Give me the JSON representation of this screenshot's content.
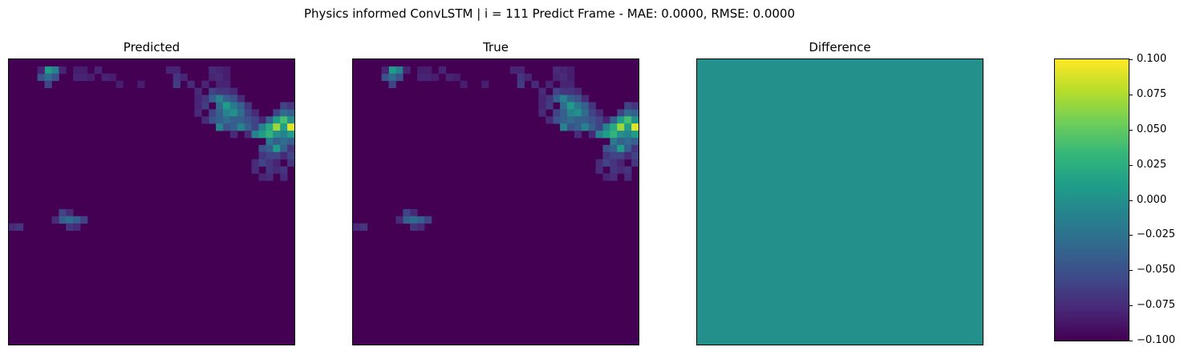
{
  "figure": {
    "suptitle": "Physics informed ConvLSTM | i = 111 Predict Frame - MAE: 0.0000, RMSE: 0.0000"
  },
  "panels": [
    {
      "title": "Predicted"
    },
    {
      "title": "True"
    },
    {
      "title": "Difference"
    }
  ],
  "chart_data": {
    "type": "heatmap",
    "grid_size": 40,
    "colormap": "viridis",
    "cells": [
      [
        1,
        5,
        0.55
      ],
      [
        1,
        6,
        0.45
      ],
      [
        2,
        4,
        0.25
      ],
      [
        2,
        5,
        0.35
      ],
      [
        2,
        6,
        0.25
      ],
      [
        3,
        5,
        0.2
      ],
      [
        1,
        4,
        0.1
      ],
      [
        1,
        7,
        0.1
      ],
      [
        1,
        9,
        0.08
      ],
      [
        1,
        10,
        0.08
      ],
      [
        2,
        9,
        0.1
      ],
      [
        2,
        10,
        0.1
      ],
      [
        2,
        11,
        0.08
      ],
      [
        1,
        12,
        0.1
      ],
      [
        2,
        13,
        0.1
      ],
      [
        2,
        14,
        0.08
      ],
      [
        3,
        15,
        0.08
      ],
      [
        3,
        18,
        0.08
      ],
      [
        1,
        22,
        0.1
      ],
      [
        1,
        23,
        0.1
      ],
      [
        2,
        23,
        0.15
      ],
      [
        3,
        23,
        0.18
      ],
      [
        2,
        24,
        0.1
      ],
      [
        3,
        25,
        0.12
      ],
      [
        1,
        28,
        0.12
      ],
      [
        2,
        28,
        0.1
      ],
      [
        1,
        29,
        0.1
      ],
      [
        2,
        29,
        0.12
      ],
      [
        3,
        29,
        0.1
      ],
      [
        3,
        27,
        0.1
      ],
      [
        1,
        30,
        0.08
      ],
      [
        2,
        30,
        0.08
      ],
      [
        3,
        30,
        0.1
      ],
      [
        4,
        28,
        0.2
      ],
      [
        4,
        29,
        0.15
      ],
      [
        4,
        30,
        0.15
      ],
      [
        4,
        31,
        0.12
      ],
      [
        5,
        28,
        0.3
      ],
      [
        5,
        29,
        0.45
      ],
      [
        5,
        30,
        0.3
      ],
      [
        5,
        31,
        0.25
      ],
      [
        5,
        32,
        0.12
      ],
      [
        6,
        29,
        0.35
      ],
      [
        6,
        30,
        0.55
      ],
      [
        6,
        31,
        0.4
      ],
      [
        6,
        32,
        0.3
      ],
      [
        6,
        33,
        0.15
      ],
      [
        6,
        27,
        0.18
      ],
      [
        7,
        28,
        0.2
      ],
      [
        7,
        29,
        0.3
      ],
      [
        7,
        30,
        0.45
      ],
      [
        7,
        31,
        0.5
      ],
      [
        7,
        32,
        0.35
      ],
      [
        7,
        33,
        0.2
      ],
      [
        7,
        34,
        0.12
      ],
      [
        7,
        26,
        0.12
      ],
      [
        8,
        28,
        0.25
      ],
      [
        8,
        29,
        0.3
      ],
      [
        8,
        30,
        0.35
      ],
      [
        8,
        31,
        0.3
      ],
      [
        8,
        32,
        0.3
      ],
      [
        8,
        33,
        0.25
      ],
      [
        8,
        34,
        0.2
      ],
      [
        8,
        35,
        0.1
      ],
      [
        8,
        27,
        0.12
      ],
      [
        7,
        37,
        0.2
      ],
      [
        7,
        38,
        0.35
      ],
      [
        7,
        39,
        0.3
      ],
      [
        6,
        38,
        0.2
      ],
      [
        6,
        39,
        0.15
      ],
      [
        8,
        36,
        0.3
      ],
      [
        8,
        37,
        0.55
      ],
      [
        8,
        38,
        0.7
      ],
      [
        8,
        39,
        0.5
      ],
      [
        9,
        29,
        0.45
      ],
      [
        9,
        30,
        0.25
      ],
      [
        9,
        31,
        0.3
      ],
      [
        9,
        32,
        0.45
      ],
      [
        9,
        33,
        0.3
      ],
      [
        9,
        34,
        0.2
      ],
      [
        9,
        35,
        0.45
      ],
      [
        9,
        36,
        0.6
      ],
      [
        9,
        37,
        0.85
      ],
      [
        9,
        38,
        0.55
      ],
      [
        9,
        39,
        0.95
      ],
      [
        10,
        31,
        0.12
      ],
      [
        10,
        33,
        0.12
      ],
      [
        10,
        34,
        0.45
      ],
      [
        10,
        35,
        0.55
      ],
      [
        10,
        36,
        0.65
      ],
      [
        10,
        37,
        0.5
      ],
      [
        10,
        38,
        0.45
      ],
      [
        10,
        39,
        0.55
      ],
      [
        11,
        36,
        0.4
      ],
      [
        11,
        37,
        0.3
      ],
      [
        11,
        38,
        0.35
      ],
      [
        11,
        39,
        0.3
      ],
      [
        12,
        35,
        0.25
      ],
      [
        12,
        36,
        0.3
      ],
      [
        12,
        37,
        0.55
      ],
      [
        12,
        38,
        0.3
      ],
      [
        12,
        39,
        0.15
      ],
      [
        13,
        35,
        0.15
      ],
      [
        13,
        36,
        0.2
      ],
      [
        13,
        37,
        0.2
      ],
      [
        13,
        38,
        0.12
      ],
      [
        13,
        39,
        0.2
      ],
      [
        14,
        34,
        0.12
      ],
      [
        14,
        35,
        0.2
      ],
      [
        14,
        36,
        0.15
      ],
      [
        14,
        37,
        0.1
      ],
      [
        14,
        39,
        0.15
      ],
      [
        15,
        34,
        0.12
      ],
      [
        15,
        36,
        0.15
      ],
      [
        15,
        37,
        0.12
      ],
      [
        15,
        38,
        0.15
      ],
      [
        16,
        35,
        0.1
      ],
      [
        16,
        36,
        0.12
      ],
      [
        16,
        38,
        0.12
      ],
      [
        21,
        7,
        0.2
      ],
      [
        21,
        8,
        0.12
      ],
      [
        22,
        7,
        0.3
      ],
      [
        22,
        8,
        0.35
      ],
      [
        22,
        9,
        0.3
      ],
      [
        22,
        10,
        0.2
      ],
      [
        23,
        8,
        0.15
      ],
      [
        23,
        9,
        0.12
      ],
      [
        22,
        6,
        0.12
      ],
      [
        23,
        0,
        0.12
      ],
      [
        23,
        1,
        0.15
      ],
      [
        4,
        26,
        0.12
      ],
      [
        5,
        26,
        0.1
      ],
      [
        5,
        27,
        0.15
      ],
      [
        6,
        26,
        0.1
      ]
    ],
    "colorbar": {
      "vmin": -0.1,
      "vmax": 0.1,
      "ticks": [
        "0.100",
        "0.075",
        "0.050",
        "0.025",
        "0.000",
        "−0.025",
        "−0.050",
        "−0.075",
        "−0.100"
      ]
    }
  }
}
